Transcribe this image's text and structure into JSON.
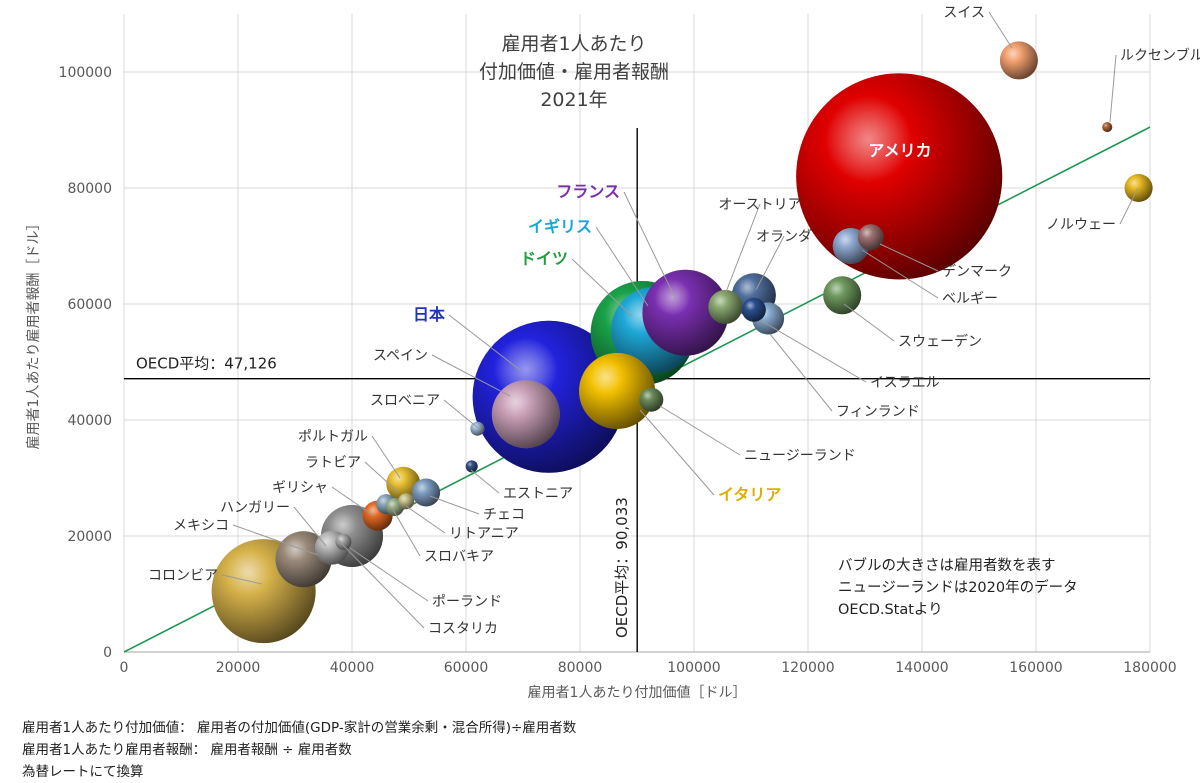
{
  "chart_data": {
    "type": "scatter",
    "title_lines": [
      "雇用者1人あたり",
      "付加価値・雇用者報酬",
      "2021年"
    ],
    "xlabel": "雇用者1人あたり付加価値［ドル］",
    "ylabel": "雇用者1人あたり雇用者報酬［ドル］",
    "xlim": [
      0,
      180000
    ],
    "ylim": [
      0,
      110000
    ],
    "x_ticks": [
      "0",
      "20000",
      "40000",
      "60000",
      "80000",
      "100000",
      "120000",
      "140000",
      "160000",
      "180000"
    ],
    "y_ticks": [
      "0",
      "20000",
      "40000",
      "60000",
      "80000",
      "100000"
    ],
    "oecd_avg_x": 90033,
    "oecd_avg_x_label": "OECD平均：90,033",
    "oecd_avg_y": 47126,
    "oecd_avg_y_label": "OECD平均：47,126",
    "trendline": {
      "x": [
        0,
        180000
      ],
      "y": [
        0,
        90500
      ],
      "color": "#1a9850"
    },
    "grid": true,
    "notes": [
      "バブルの大きさは雇用者数を表す",
      "ニュージーランドは2020年のデータ",
      "OECD.Statより"
    ],
    "points": [
      {
        "name": "アメリカ",
        "x": 136000,
        "y": 82000,
        "r": 103,
        "color": "#e00000",
        "highlight": true,
        "label_color": "#ffffff",
        "label_inside": true
      },
      {
        "name": "日本",
        "x": 74500,
        "y": 44000,
        "r": 76,
        "color": "#2222dd",
        "highlight": true,
        "label_color": "#2233bb"
      },
      {
        "name": "ドイツ",
        "x": 91000,
        "y": 55000,
        "r": 52,
        "color": "#1aa34a",
        "highlight": true,
        "label_color": "#1e9e3c"
      },
      {
        "name": "イギリス",
        "x": 93000,
        "y": 55500,
        "r": 43,
        "color": "#1fa8d8",
        "highlight": true,
        "label_color": "#14a7d6"
      },
      {
        "name": "フランス",
        "x": 98500,
        "y": 58500,
        "r": 43,
        "color": "#7a2fb0",
        "highlight": true,
        "label_color": "#7a2fa8"
      },
      {
        "name": "イタリア",
        "x": 86500,
        "y": 45000,
        "r": 38,
        "color": "#f2c000",
        "highlight": true,
        "label_color": "#e0ae00"
      },
      {
        "name": "スペイン",
        "x": 70500,
        "y": 41000,
        "r": 34,
        "color": "#c9a0b8",
        "label_color": "#333333"
      },
      {
        "name": "スイス",
        "x": 157000,
        "y": 102000,
        "r": 19,
        "color": "#f2a070",
        "label_color": "#333333"
      },
      {
        "name": "ルクセンブルク",
        "x": 172500,
        "y": 90500,
        "r": 5,
        "color": "#b0653a",
        "label_color": "#333333"
      },
      {
        "name": "ノルウェー",
        "x": 178000,
        "y": 80000,
        "r": 14,
        "color": "#e6b820",
        "label_color": "#333333"
      },
      {
        "name": "オーストリア",
        "x": 105500,
        "y": 59500,
        "r": 17,
        "color": "#8aa870",
        "label_color": "#333333"
      },
      {
        "name": "オランダ",
        "x": 110500,
        "y": 61500,
        "r": 22,
        "color": "#506f9e",
        "label_color": "#333333"
      },
      {
        "name": "デンマーク",
        "x": 131000,
        "y": 71500,
        "r": 13,
        "color": "#9e7272",
        "label_color": "#333333"
      },
      {
        "name": "ベルギー",
        "x": 127500,
        "y": 70000,
        "r": 18,
        "color": "#8fa8d0",
        "label_color": "#333333"
      },
      {
        "name": "スウェーデン",
        "x": 126000,
        "y": 61500,
        "r": 19,
        "color": "#6f9a5f",
        "label_color": "#333333"
      },
      {
        "name": "イスラエル",
        "x": 110500,
        "y": 59000,
        "r": 12,
        "color": "#2a4f8f",
        "label_color": "#333333"
      },
      {
        "name": "フィンランド",
        "x": 113000,
        "y": 57500,
        "r": 16,
        "color": "#88aad0",
        "label_color": "#333333"
      },
      {
        "name": "ニュージーランド",
        "x": 92500,
        "y": 43500,
        "r": 12,
        "color": "#6a8a5a",
        "label_color": "#333333"
      },
      {
        "name": "スロベニア",
        "x": 62000,
        "y": 38500,
        "r": 7,
        "color": "#9eb6d6",
        "label_color": "#333333"
      },
      {
        "name": "エストニア",
        "x": 61000,
        "y": 32000,
        "r": 6,
        "color": "#35528a",
        "label_color": "#333333"
      },
      {
        "name": "ポルトガル",
        "x": 49000,
        "y": 29000,
        "r": 17,
        "color": "#e8c030",
        "label_color": "#333333"
      },
      {
        "name": "チェコ",
        "x": 53000,
        "y": 27500,
        "r": 14,
        "color": "#7f9ec2",
        "label_color": "#333333"
      },
      {
        "name": "ラトビア",
        "x": 49500,
        "y": 26000,
        "r": 8,
        "color": "#c7c08a",
        "label_color": "#333333"
      },
      {
        "name": "リトアニア",
        "x": 47500,
        "y": 25000,
        "r": 9,
        "color": "#9ab18a",
        "label_color": "#333333"
      },
      {
        "name": "ギリシャ",
        "x": 44500,
        "y": 23500,
        "r": 15,
        "color": "#e46a22",
        "label_color": "#333333"
      },
      {
        "name": "スロバキア",
        "x": 46000,
        "y": 25500,
        "r": 10,
        "color": "#8aa8c0",
        "label_color": "#333333"
      },
      {
        "name": "ハンガリー",
        "x": 36500,
        "y": 18000,
        "r": 17,
        "color": "#b8b8b8",
        "label_color": "#333333"
      },
      {
        "name": "メキシコ",
        "x": 31500,
        "y": 16000,
        "r": 28,
        "color": "#9a8a7a",
        "label_color": "#333333"
      },
      {
        "name": "ポーランド",
        "x": 40000,
        "y": 20000,
        "r": 31,
        "color": "#909090",
        "label_color": "#333333"
      },
      {
        "name": "コスタリカ",
        "x": 38500,
        "y": 19000,
        "r": 8,
        "color": "#a8a8a8",
        "label_color": "#333333"
      },
      {
        "name": "コロンビア",
        "x": 24500,
        "y": 10500,
        "r": 52,
        "color": "#d6b24a",
        "label_color": "#333333"
      }
    ]
  },
  "footnotes": [
    "雇用者1人あたり付加価値： 雇用者の付加価値(GDP-家計の営業余剰・混合所得)÷雇用者数",
    "雇用者1人あたり雇用者報酬： 雇用者報酬 ÷ 雇用者数",
    "為替レートにて換算"
  ]
}
